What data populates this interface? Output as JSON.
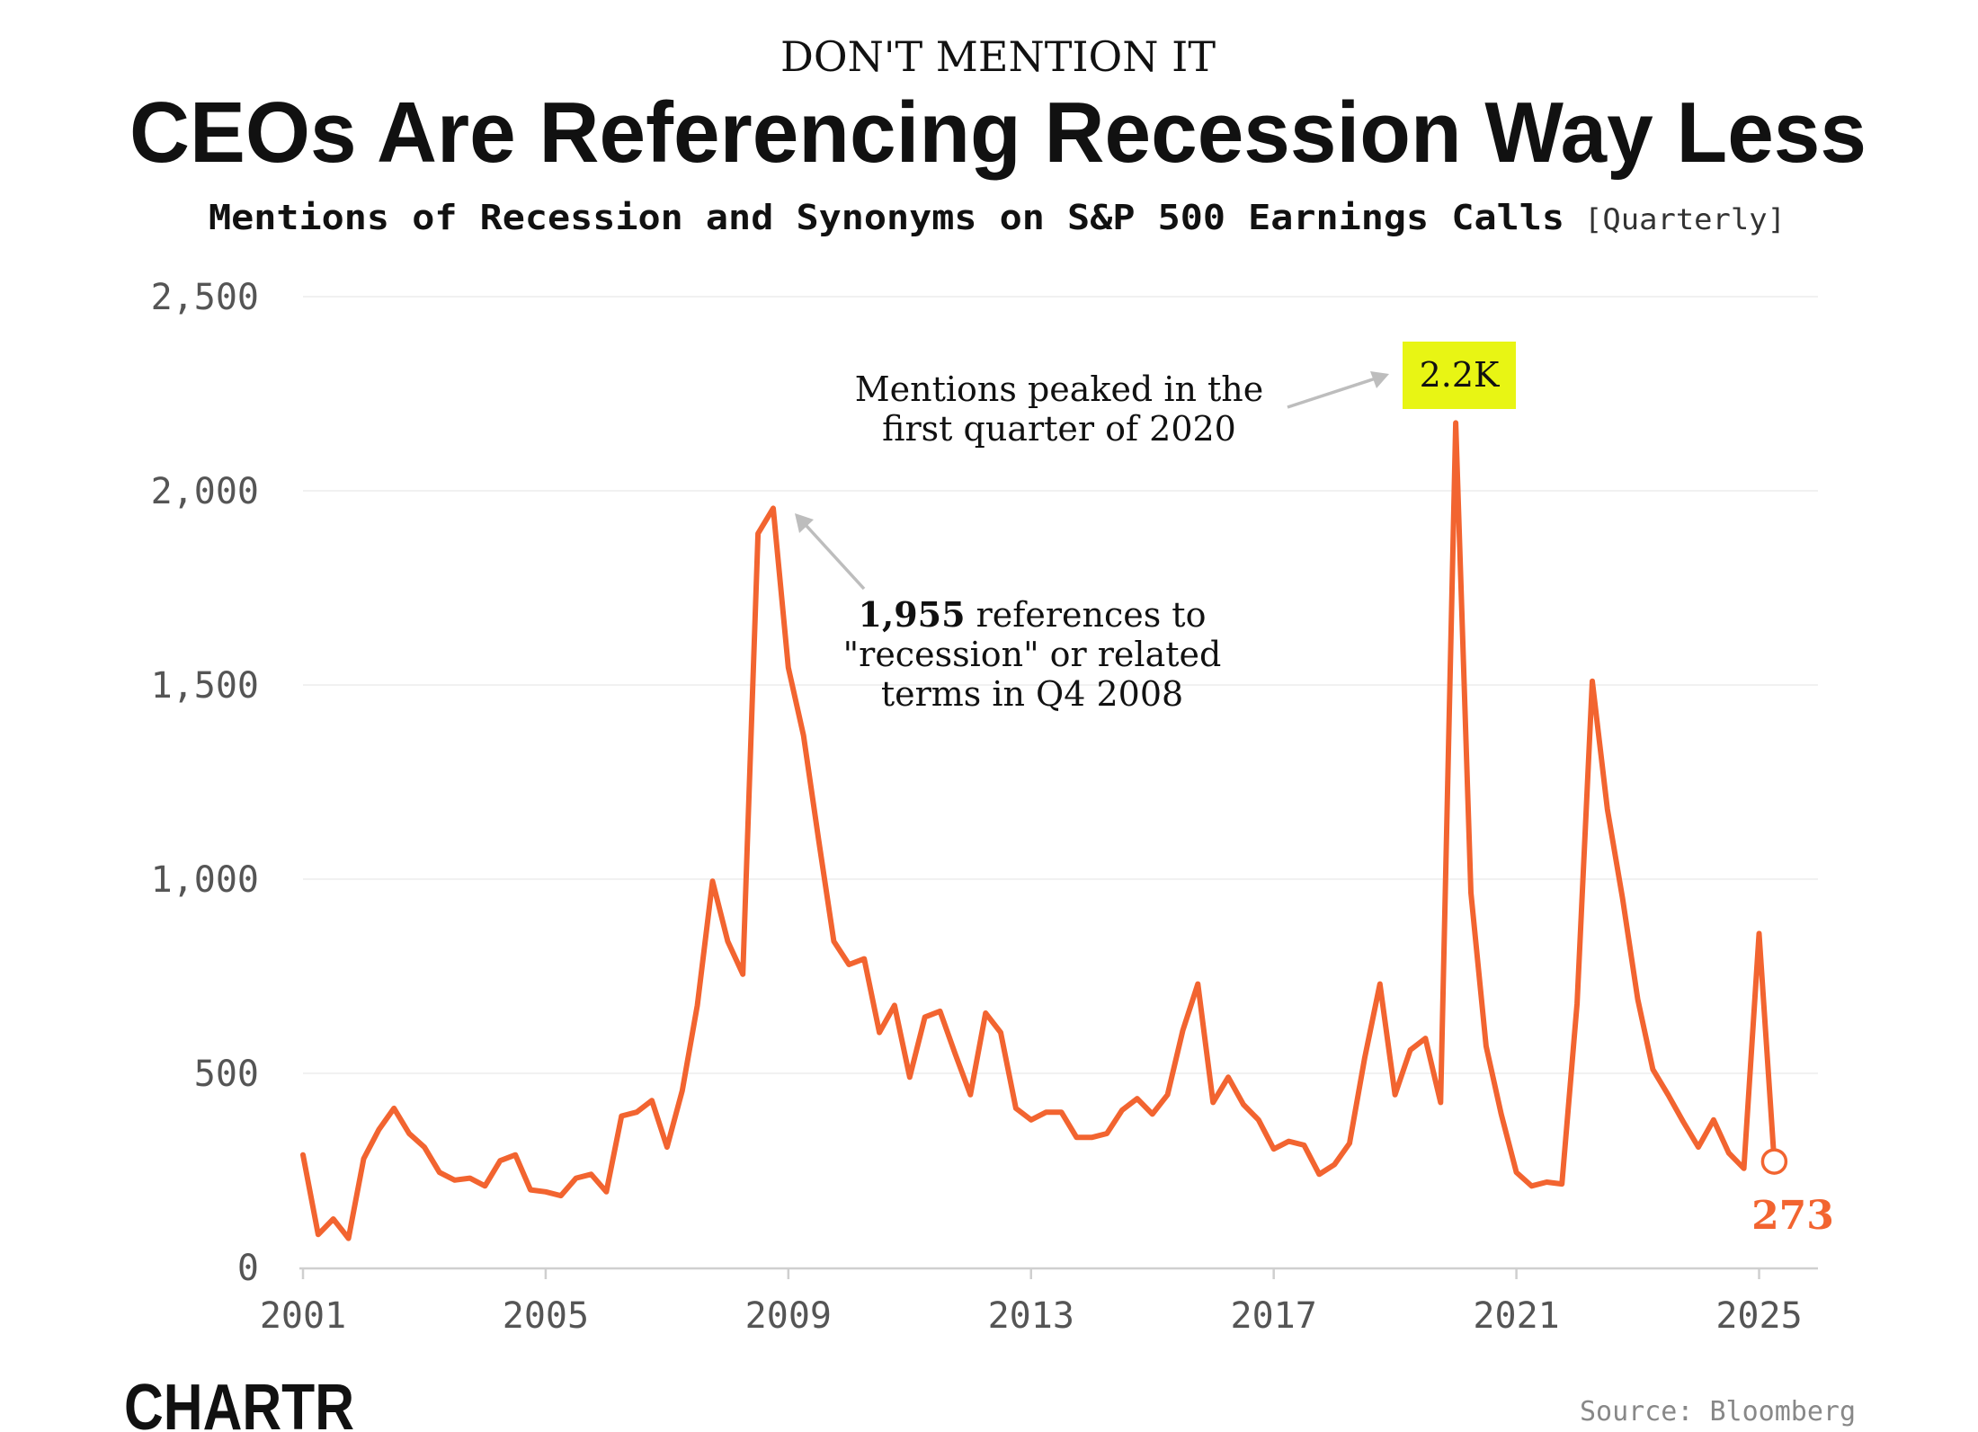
{
  "kicker": "DON'T MENTION IT",
  "headline": "CEOs Are Referencing Recession Way Less",
  "subtitle": "Mentions of Recession and Synonyms on S&P 500 Earnings Calls",
  "subtitle_tag": "[Quarterly]",
  "source": "Source: Bloomberg",
  "logo_text": "CHARTR",
  "colors": {
    "line": "#f26430",
    "text": "#111111",
    "axis_text": "#555555",
    "grid": "#f1f1f1",
    "highlight": "#e8f514",
    "arrow": "#bdbdbd",
    "source": "#888888"
  },
  "chart_data": {
    "type": "line",
    "title": "CEOs Are Referencing Recession Way Less",
    "xlabel": "",
    "ylabel": "",
    "ylim": [
      0,
      2500
    ],
    "xlim": [
      2001,
      2026
    ],
    "yticks": [
      0,
      500,
      1000,
      1500,
      2000,
      2500
    ],
    "ytick_labels": [
      "0",
      "500",
      "1,000",
      "1,500",
      "2,000",
      "2,500"
    ],
    "xticks": [
      2001,
      2005,
      2009,
      2013,
      2017,
      2021,
      2025
    ],
    "xtick_labels": [
      "2001",
      "2005",
      "2009",
      "2013",
      "2017",
      "2021",
      "2025"
    ],
    "grid": true,
    "series": [
      {
        "name": "Mentions of recession and synonyms",
        "x": [
          2001.0,
          2001.25,
          2001.5,
          2001.75,
          2002.0,
          2002.25,
          2002.5,
          2002.75,
          2003.0,
          2003.25,
          2003.5,
          2003.75,
          2004.0,
          2004.25,
          2004.5,
          2004.75,
          2005.0,
          2005.25,
          2005.5,
          2005.75,
          2006.0,
          2006.25,
          2006.5,
          2006.75,
          2007.0,
          2007.25,
          2007.5,
          2007.75,
          2008.0,
          2008.25,
          2008.5,
          2008.75,
          2009.0,
          2009.25,
          2009.5,
          2009.75,
          2010.0,
          2010.25,
          2010.5,
          2010.75,
          2011.0,
          2011.25,
          2011.5,
          2011.75,
          2012.0,
          2012.25,
          2012.5,
          2012.75,
          2013.0,
          2013.25,
          2013.5,
          2013.75,
          2014.0,
          2014.25,
          2014.5,
          2014.75,
          2015.0,
          2015.25,
          2015.5,
          2015.75,
          2016.0,
          2016.25,
          2016.5,
          2016.75,
          2017.0,
          2017.25,
          2017.5,
          2017.75,
          2018.0,
          2018.25,
          2018.5,
          2018.75,
          2019.0,
          2019.25,
          2019.5,
          2019.75,
          2020.0,
          2020.25,
          2020.5,
          2020.75,
          2021.0,
          2021.25,
          2021.5,
          2021.75,
          2022.0,
          2022.25,
          2022.5,
          2022.75,
          2023.0,
          2023.25,
          2023.5,
          2023.75,
          2024.0,
          2024.25,
          2024.5,
          2024.75,
          2025.0,
          2025.25
        ],
        "values": [
          290,
          85,
          125,
          75,
          280,
          355,
          410,
          345,
          310,
          245,
          225,
          230,
          210,
          275,
          290,
          200,
          195,
          185,
          230,
          240,
          195,
          390,
          400,
          430,
          310,
          455,
          675,
          995,
          840,
          755,
          1890,
          1955,
          1545,
          1370,
          1100,
          840,
          780,
          795,
          605,
          675,
          490,
          645,
          660,
          550,
          445,
          655,
          605,
          410,
          380,
          400,
          400,
          335,
          335,
          345,
          405,
          435,
          395,
          445,
          610,
          730,
          425,
          490,
          420,
          380,
          305,
          325,
          315,
          240,
          265,
          320,
          540,
          730,
          445,
          560,
          590,
          425,
          2175,
          965,
          570,
          395,
          245,
          210,
          220,
          215,
          680,
          1510,
          1180,
          950,
          690,
          510,
          445,
          375,
          310,
          380,
          295,
          255,
          860,
          273
        ]
      }
    ],
    "annotations": {
      "peak_badge": "2.2K",
      "peak_note_line1": "Mentions peaked in the",
      "peak_note_line2": "first quarter of 2020",
      "gfc_note_bold": "1,955",
      "gfc_note_line1_rest": " references to",
      "gfc_note_line2": "\"recession\" or related",
      "gfc_note_line3": "terms in Q4 2008",
      "last_value_label": "273"
    }
  }
}
